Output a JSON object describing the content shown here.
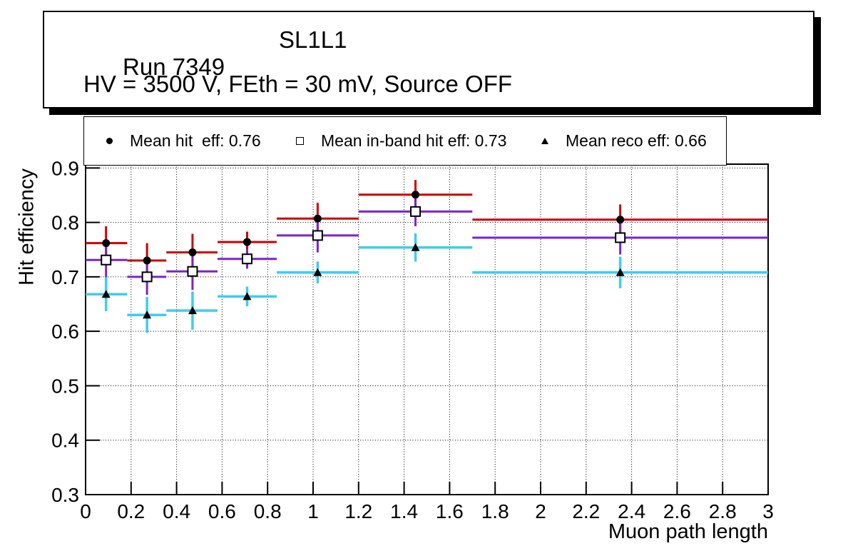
{
  "title": {
    "run": "Run 7349",
    "chamber": "SL1L1",
    "conditions": "HV = 3500 V, FEth = 30 mV, Source OFF"
  },
  "legend": {
    "entries": [
      {
        "marker": "filled-circle",
        "label": "Mean hit  eff: 0.76"
      },
      {
        "marker": "open-square",
        "label": "Mean in-band hit eff: 0.73"
      },
      {
        "marker": "filled-triangle",
        "label": "Mean reco eff: 0.66"
      }
    ]
  },
  "colors": {
    "hit_line": "#cc0000",
    "in_band_line": "#7d22cc",
    "reco_line": "#3dccf5",
    "marker": "#000000",
    "frame": "#000000",
    "background": "#ffffff"
  },
  "chart_data": {
    "type": "scatter",
    "title": "",
    "xlabel": "Muon path length",
    "ylabel": "Hit efficiency",
    "xlim": [
      0,
      3
    ],
    "ylim": [
      0.3,
      0.907
    ],
    "grid": "dotted-both-axes",
    "legend_position": "top-inside",
    "x_tick_values": [
      0,
      0.2,
      0.4,
      0.6,
      0.8,
      1,
      1.2,
      1.4,
      1.6,
      1.8,
      2,
      2.2,
      2.4,
      2.6,
      2.8,
      3
    ],
    "x_tick_labels": [
      "0",
      "0.2",
      "0.4",
      "0.6",
      "0.8",
      "1",
      "1.2",
      "1.4",
      "1.6",
      "1.8",
      "2",
      "2.2",
      "2.4",
      "2.6",
      "2.8",
      "3"
    ],
    "y_tick_values": [
      0.3,
      0.4,
      0.5,
      0.6,
      0.7,
      0.8,
      0.9
    ],
    "y_tick_labels": [
      "0.3",
      "0.4",
      "0.5",
      "0.6",
      "0.7",
      "0.8",
      "0.9"
    ],
    "bins": [
      {
        "x_low": 0.0,
        "x_center": 0.09,
        "x_high": 0.183
      },
      {
        "x_low": 0.183,
        "x_center": 0.27,
        "x_high": 0.355
      },
      {
        "x_low": 0.355,
        "x_center": 0.47,
        "x_high": 0.58
      },
      {
        "x_low": 0.58,
        "x_center": 0.71,
        "x_high": 0.84
      },
      {
        "x_low": 0.84,
        "x_center": 1.02,
        "x_high": 1.2
      },
      {
        "x_low": 1.2,
        "x_center": 1.45,
        "x_high": 1.7
      },
      {
        "x_low": 1.7,
        "x_center": 2.35,
        "x_high": 3.0
      }
    ],
    "series": [
      {
        "id": "mean-hit-eff",
        "name": "Mean hit  eff: 0.76",
        "mean": 0.76,
        "marker": "filled-circle",
        "line_color": "#cc0000",
        "marker_color": "#000000",
        "line_width": 3,
        "values": [
          0.762,
          0.73,
          0.745,
          0.764,
          0.807,
          0.851,
          0.805
        ],
        "y_err": [
          0.031,
          0.032,
          0.034,
          0.019,
          0.029,
          0.027,
          0.028
        ]
      },
      {
        "id": "mean-in-band-hit-eff",
        "name": "Mean in-band hit eff: 0.73",
        "mean": 0.73,
        "marker": "open-square",
        "line_color": "#7d22cc",
        "marker_color": "#000000",
        "line_width": 3,
        "values": [
          0.731,
          0.7,
          0.71,
          0.733,
          0.776,
          0.82,
          0.772
        ],
        "y_err": [
          0.032,
          0.033,
          0.034,
          0.018,
          0.031,
          0.027,
          0.031
        ]
      },
      {
        "id": "mean-reco-eff",
        "name": "Mean reco eff: 0.66",
        "mean": 0.66,
        "marker": "filled-triangle",
        "line_color": "#3dccf5",
        "marker_color": "#000000",
        "line_width": 3.5,
        "values": [
          0.668,
          0.63,
          0.638,
          0.664,
          0.708,
          0.754,
          0.708
        ],
        "y_err": [
          0.031,
          0.033,
          0.035,
          0.018,
          0.02,
          0.026,
          0.029
        ]
      }
    ]
  }
}
